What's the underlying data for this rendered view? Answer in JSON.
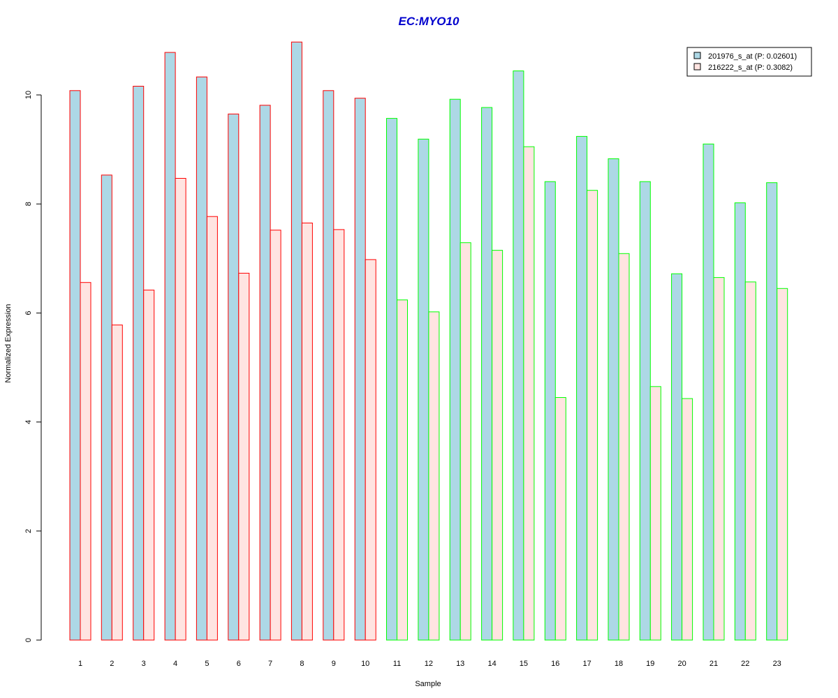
{
  "chart_data": {
    "type": "bar",
    "title": "EC:MYO10",
    "xlabel": "Sample",
    "ylabel": "Normalized Expression",
    "ylim": [
      0,
      11
    ],
    "yticks": [
      0,
      2,
      4,
      6,
      8,
      10
    ],
    "grid": false,
    "legend_position": "top-right",
    "categories": [
      "1",
      "2",
      "3",
      "4",
      "5",
      "6",
      "7",
      "8",
      "9",
      "10",
      "11",
      "12",
      "13",
      "14",
      "15",
      "16",
      "17",
      "18",
      "19",
      "20",
      "21",
      "22",
      "23"
    ],
    "series": [
      {
        "name": "201976_s_at (P: 0.02601)",
        "fill": "#add8e6",
        "values": [
          10.08,
          8.53,
          10.16,
          10.78,
          10.33,
          9.65,
          9.81,
          10.97,
          10.08,
          9.94,
          9.57,
          9.19,
          9.92,
          9.77,
          10.44,
          8.41,
          9.24,
          8.83,
          8.41,
          6.72,
          9.1,
          8.02,
          8.39
        ]
      },
      {
        "name": "216222_s_at (P: 0.3082)",
        "fill": "#ffe4e1",
        "values": [
          6.56,
          5.78,
          6.42,
          8.47,
          7.77,
          6.73,
          7.52,
          7.65,
          7.53,
          6.98,
          6.24,
          6.02,
          7.29,
          7.15,
          9.05,
          4.45,
          8.25,
          7.09,
          4.65,
          4.43,
          6.65,
          6.57,
          6.45
        ]
      }
    ],
    "group_border_colors": [
      "#ff0000",
      "#ff0000",
      "#ff0000",
      "#ff0000",
      "#ff0000",
      "#ff0000",
      "#ff0000",
      "#ff0000",
      "#ff0000",
      "#ff0000",
      "#00ff00",
      "#00ff00",
      "#00ff00",
      "#00ff00",
      "#00ff00",
      "#00ff00",
      "#00ff00",
      "#00ff00",
      "#00ff00",
      "#00ff00",
      "#00ff00",
      "#00ff00",
      "#00ff00"
    ]
  },
  "colors": {
    "title": "#0000cd",
    "axis": "#000000",
    "legend_border": "#000000"
  }
}
